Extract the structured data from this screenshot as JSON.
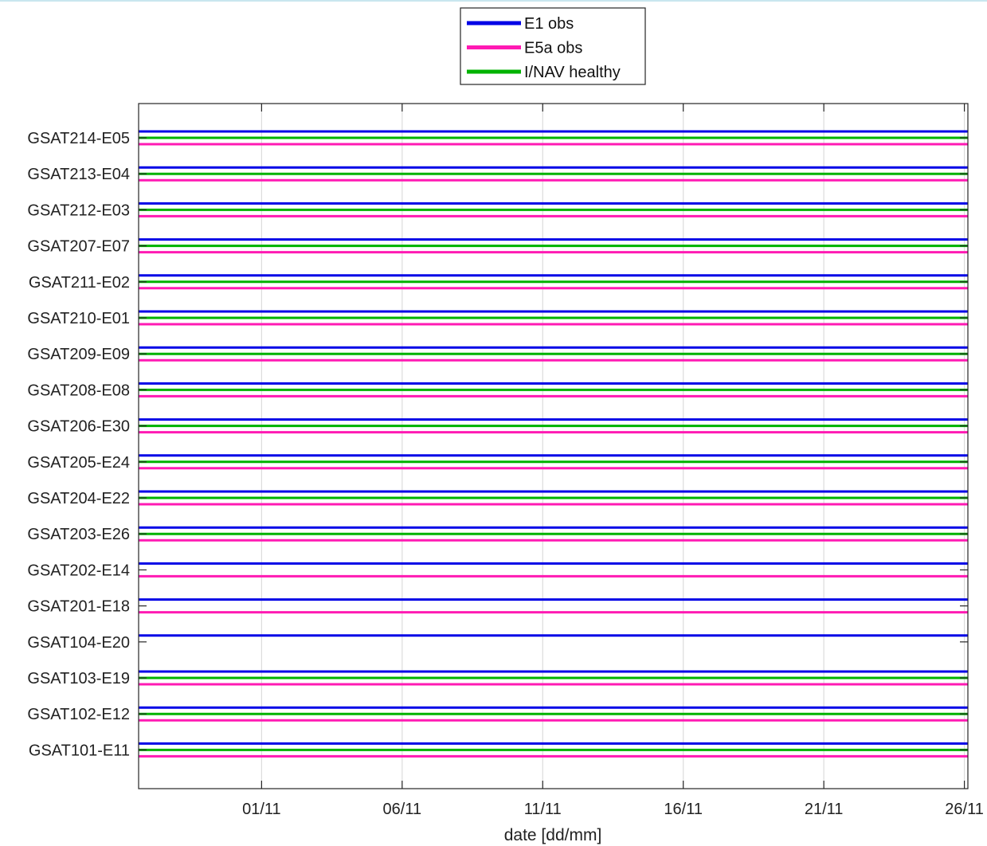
{
  "chart_data": {
    "type": "line",
    "title": "",
    "xlabel": "date [dd/mm]",
    "ylabel": "",
    "x_tick_labels": [
      "01/11",
      "06/11",
      "11/11",
      "16/11",
      "21/11",
      "26/11"
    ],
    "x_tick_dates": [
      "2023-11-01",
      "2023-11-06",
      "2023-11-11",
      "2023-11-16",
      "2023-11-21",
      "2023-11-26"
    ],
    "xlim": [
      "2023-10-27 15:00",
      "2023-11-26 03:00"
    ],
    "grid": "x-only",
    "legend_position": "top-center, outside plot",
    "legend": [
      {
        "name": "E1 obs",
        "color": "#0000e6"
      },
      {
        "name": "E5a obs",
        "color": "#ff1ab3"
      },
      {
        "name": "I/NAV healthy",
        "color": "#00b300"
      }
    ],
    "categories": [
      "GSAT214-E05",
      "GSAT213-E04",
      "GSAT212-E03",
      "GSAT207-E07",
      "GSAT211-E02",
      "GSAT210-E01",
      "GSAT209-E09",
      "GSAT208-E08",
      "GSAT206-E30",
      "GSAT205-E24",
      "GSAT204-E22",
      "GSAT203-E26",
      "GSAT202-E14",
      "GSAT201-E18",
      "GSAT104-E20",
      "GSAT103-E19",
      "GSAT102-E12",
      "GSAT101-E11"
    ],
    "series": [
      {
        "name": "E1 obs",
        "values": [
          true,
          true,
          true,
          true,
          true,
          true,
          true,
          true,
          true,
          true,
          true,
          true,
          true,
          true,
          true,
          true,
          true,
          true
        ]
      },
      {
        "name": "E5a obs",
        "values": [
          true,
          true,
          true,
          true,
          true,
          true,
          true,
          true,
          true,
          true,
          true,
          true,
          true,
          true,
          false,
          true,
          true,
          true
        ]
      },
      {
        "name": "I/NAV healthy",
        "values": [
          true,
          true,
          true,
          true,
          true,
          true,
          true,
          true,
          true,
          true,
          true,
          true,
          false,
          false,
          false,
          true,
          true,
          true
        ]
      }
    ]
  }
}
